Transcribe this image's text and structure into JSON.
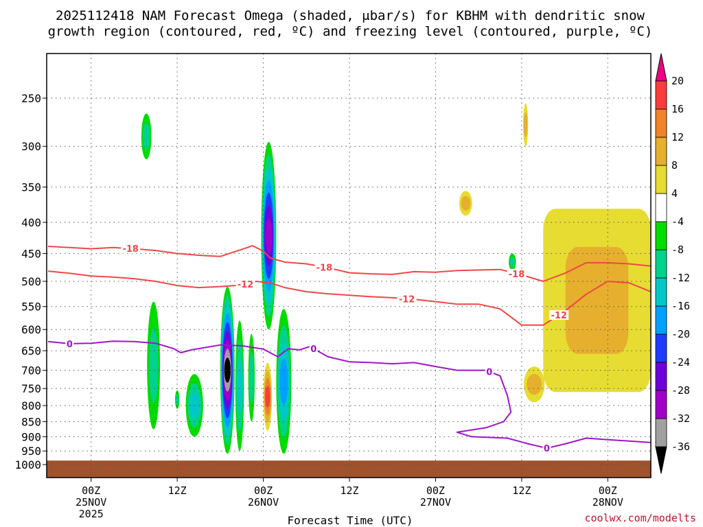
{
  "title_line1": "2025112418 NAM Forecast Omega (shaded, μbar/s) for KBHM with dendritic snow",
  "title_line2": "growth region (contoured, red, ºC) and freezing level (contoured, purple, ºC)",
  "credit": "coolwx.com/modelts",
  "chart_data": {
    "type": "contour",
    "title": "2025112418 NAM Forecast Omega (shaded, μbar/s) for KBHM with dendritic snow growth region (contoured, red, ºC) and freezing level (contoured, purple, ºC)",
    "xlabel": "Forecast Time (UTC)",
    "ylabel": "",
    "x_units": "forecast hours from 2025-11-24 18Z",
    "xlim": [
      0,
      84
    ],
    "y_units": "hPa",
    "ylim": [
      1000,
      200
    ],
    "y_scale": "log",
    "grid": true,
    "y_ticks": [
      250,
      300,
      350,
      400,
      450,
      500,
      550,
      600,
      650,
      700,
      750,
      800,
      850,
      900,
      950,
      1000
    ],
    "x_ticks": [
      {
        "hour": 6,
        "label": "00Z",
        "date": "25NOV",
        "year": "2025"
      },
      {
        "hour": 18,
        "label": "12Z",
        "date": "",
        "year": ""
      },
      {
        "hour": 30,
        "label": "00Z",
        "date": "26NOV",
        "year": ""
      },
      {
        "hour": 42,
        "label": "12Z",
        "date": "",
        "year": ""
      },
      {
        "hour": 54,
        "label": "00Z",
        "date": "27NOV",
        "year": ""
      },
      {
        "hour": 66,
        "label": "12Z",
        "date": "",
        "year": ""
      },
      {
        "hour": 78,
        "label": "00Z",
        "date": "28NOV",
        "year": ""
      }
    ],
    "colorbar": {
      "units": "μbar/s",
      "levels": [
        -36,
        -32,
        -28,
        -24,
        -20,
        -16,
        -12,
        -8,
        -4,
        4,
        8,
        12,
        16,
        20
      ],
      "colors": [
        "#000000",
        "#a0a0a0",
        "#a000c8",
        "#6e00dc",
        "#1e3cff",
        "#00a0ff",
        "#00c8c8",
        "#00d28c",
        "#00dc00",
        "#ffffff",
        "#e6dc32",
        "#e6af2d",
        "#f08228",
        "#fa3c3c",
        "#f00082"
      ]
    },
    "colors": {
      "dgz_contour": "#f04646",
      "freezing_contour": "#a014c8",
      "ground": "#a0522d"
    },
    "series": [
      {
        "name": "-18",
        "color": "#f04646",
        "label_hours": [
          [
            11.5,
            -18
          ],
          [
            38.5,
            -18
          ],
          [
            65.3,
            -18
          ]
        ],
        "x": [
          0,
          3,
          6,
          9,
          12,
          15,
          18,
          21,
          24,
          27,
          28.5,
          30,
          31,
          33,
          36,
          39,
          42,
          45,
          48,
          51,
          54,
          57,
          60,
          63,
          66,
          69,
          72,
          75,
          78,
          81,
          84
        ],
        "y": [
          438,
          440,
          442,
          440,
          442,
          445,
          450,
          453,
          455,
          443,
          437,
          446,
          458,
          465,
          468,
          475,
          484,
          486,
          487,
          482,
          483,
          480,
          479,
          478,
          488,
          500,
          485,
          466,
          466,
          468,
          472
        ]
      },
      {
        "name": "-12",
        "color": "#f04646",
        "label_hours": [
          [
            27.5,
            -12
          ],
          [
            50,
            -12
          ],
          [
            71.2,
            -12
          ]
        ],
        "x": [
          0,
          3,
          6,
          9,
          12,
          15,
          18,
          21,
          24,
          27,
          29,
          31,
          33,
          36,
          39,
          42,
          45,
          48,
          51,
          54,
          57,
          60,
          63,
          66,
          69,
          72,
          75,
          78,
          81,
          84
        ],
        "y": [
          481,
          485,
          490,
          492,
          495,
          500,
          508,
          512,
          510,
          507,
          500,
          503,
          512,
          520,
          524,
          527,
          530,
          532,
          535,
          540,
          545,
          545,
          555,
          590,
          590,
          560,
          525,
          500,
          503,
          520
        ]
      },
      {
        "name": "0",
        "color": "#a014c8",
        "label_hours": [
          [
            3,
            0
          ],
          [
            37,
            0
          ],
          [
            61.5,
            0
          ],
          [
            69.5,
            0
          ]
        ],
        "x": [
          0,
          3,
          6,
          9,
          12,
          15,
          17.5,
          18.5,
          20,
          24,
          27,
          30,
          32,
          33.5,
          35,
          36.5,
          39,
          42,
          45,
          48,
          51,
          54,
          57,
          60,
          61,
          63,
          64,
          64.5,
          63.5,
          61,
          57,
          59,
          64,
          67,
          69.5,
          72,
          75,
          78,
          81,
          84
        ],
        "y": [
          628,
          633,
          632,
          627,
          628,
          632,
          645,
          655,
          648,
          636,
          638,
          646,
          665,
          645,
          648,
          640,
          665,
          678,
          680,
          683,
          680,
          690,
          700,
          700,
          700,
          715,
          770,
          820,
          850,
          870,
          885,
          900,
          905,
          925,
          940,
          925,
          905,
          910,
          915,
          920
        ]
      }
    ],
    "omega_regions": [
      {
        "hour": [
          13.0,
          14.4
        ],
        "p": [
          265,
          315
        ],
        "max": -4,
        "min": -8
      },
      {
        "hour": [
          13.8,
          15.6
        ],
        "p": [
          540,
          875
        ],
        "max": -4,
        "min": -8
      },
      {
        "hour": [
          17.7,
          18.3
        ],
        "p": [
          755,
          810
        ],
        "max": -4,
        "min": -8
      },
      {
        "hour": [
          19.2,
          21.6
        ],
        "p": [
          710,
          900
        ],
        "max": -4,
        "min": -12
      },
      {
        "hour": [
          24.0,
          26.0
        ],
        "p": [
          510,
          960
        ],
        "min": -36
      },
      {
        "hour": [
          26.1,
          27.3
        ],
        "p": [
          580,
          950
        ],
        "max": -4,
        "min": -12
      },
      {
        "hour": [
          27.9,
          28.8
        ],
        "p": [
          610,
          850
        ],
        "max": -4,
        "min": -8
      },
      {
        "hour": [
          29.7,
          31.8
        ],
        "p": [
          295,
          600
        ],
        "min": -28
      },
      {
        "hour": [
          30.0,
          31.2
        ],
        "p": [
          680,
          880
        ],
        "min": 16
      },
      {
        "hour": [
          31.8,
          33.9
        ],
        "p": [
          555,
          960
        ],
        "max": -4,
        "min": -16
      },
      {
        "hour": [
          57.3,
          59.1
        ],
        "p": [
          355,
          390
        ],
        "min": 4,
        "max": 8
      },
      {
        "hour": [
          66.2,
          66.9
        ],
        "p": [
          255,
          300
        ],
        "min": 4,
        "max": 8
      },
      {
        "hour": [
          64.2,
          65.2
        ],
        "p": [
          450,
          480
        ],
        "max": -4,
        "min": -8
      },
      {
        "hour": [
          66.3,
          69.2
        ],
        "p": [
          690,
          790
        ],
        "min": 4,
        "max": 8
      },
      {
        "hour": [
          69.0,
          84.0
        ],
        "p": [
          380,
          760
        ],
        "min": 4,
        "max": 8
      }
    ]
  }
}
